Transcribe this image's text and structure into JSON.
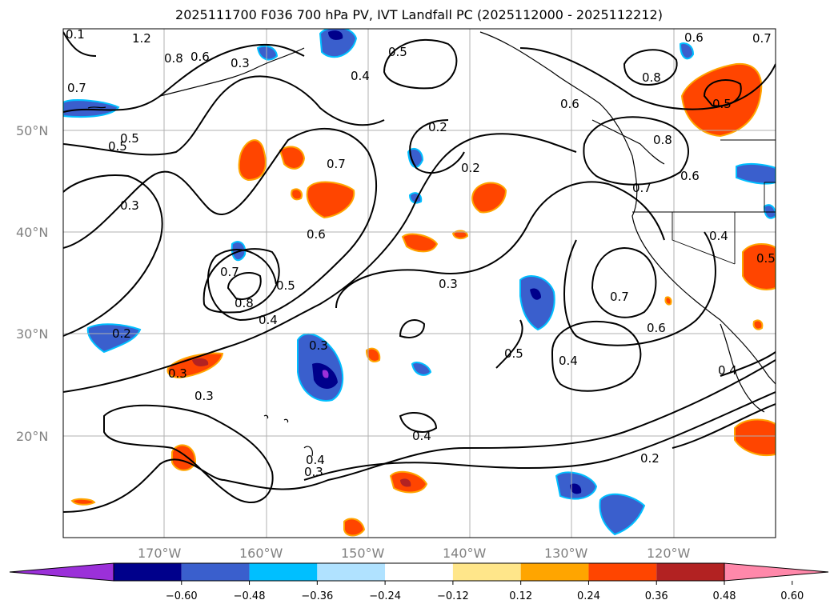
{
  "title": "2025111700 F036 700 hPa PV, IVT Landfall PC (2025112000 - 2025112212)",
  "map": {
    "lat_labels": [
      "50°N",
      "40°N",
      "30°N",
      "20°N"
    ],
    "lon_labels": [
      "170°W",
      "160°W",
      "150°W",
      "140°W",
      "130°W",
      "120°W"
    ],
    "contour_labels": [
      "1.2",
      "0.8",
      "0.6",
      "0.3",
      "0.7",
      "0.5",
      "0.3",
      "0.7",
      "0.6",
      "0.7",
      "0.8",
      "0.5",
      "0.4",
      "0.3",
      "0.2",
      "0.5",
      "0.6",
      "0.5",
      "0.2",
      "0.8",
      "0.6",
      "0.8",
      "0.7",
      "0.6",
      "0.4",
      "0.7",
      "0.6",
      "0.5",
      "0.4",
      "0.3",
      "0.4",
      "0.3",
      "0.4",
      "0.2",
      "0.4",
      "0.2",
      "0.3",
      "0.3",
      "0.4",
      "0.5",
      "0.7",
      "0.5",
      "0.1"
    ]
  },
  "colorbar": {
    "ticks": [
      "−0.60",
      "−0.48",
      "−0.36",
      "−0.24",
      "−0.12",
      "0.12",
      "0.24",
      "0.36",
      "0.48",
      "0.60"
    ],
    "colors": [
      "#9b30d9",
      "#00008b",
      "#3a5fcd",
      "#00bfff",
      "#b0e2ff",
      "#ffffff",
      "#ffe68a",
      "#ffa500",
      "#ff4500",
      "#b22222",
      "#ff88aa"
    ]
  }
}
